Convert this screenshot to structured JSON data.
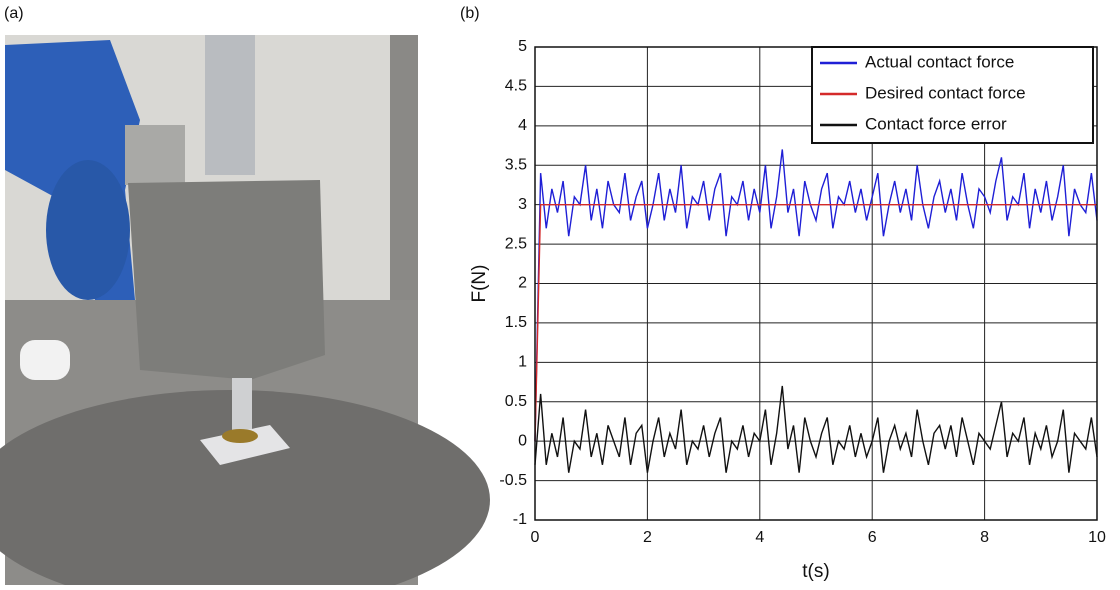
{
  "panel_labels": [
    "(a)",
    "(b)"
  ],
  "chart_data": {
    "type": "line",
    "xlabel": "t(s)",
    "ylabel": "F(N)",
    "x": [
      0,
      0.1,
      0.2,
      0.3,
      0.4,
      0.5,
      0.6,
      0.7,
      0.8,
      0.9,
      1,
      1.1,
      1.2,
      1.3,
      1.4,
      1.5,
      1.6,
      1.7,
      1.8,
      1.9,
      2,
      2.1,
      2.2,
      2.3,
      2.4,
      2.5,
      2.6,
      2.7,
      2.8,
      2.9,
      3,
      3.1,
      3.2,
      3.3,
      3.4,
      3.5,
      3.6,
      3.7,
      3.8,
      3.9,
      4,
      4.1,
      4.2,
      4.3,
      4.4,
      4.5,
      4.6,
      4.7,
      4.8,
      4.9,
      5,
      5.1,
      5.2,
      5.3,
      5.4,
      5.5,
      5.6,
      5.7,
      5.8,
      5.9,
      6,
      6.1,
      6.2,
      6.3,
      6.4,
      6.5,
      6.6,
      6.7,
      6.8,
      6.9,
      7,
      7.1,
      7.2,
      7.3,
      7.4,
      7.5,
      7.6,
      7.7,
      7.8,
      7.9,
      8,
      8.1,
      8.2,
      8.3,
      8.4,
      8.5,
      8.6,
      8.7,
      8.8,
      8.9,
      9,
      9.1,
      9.2,
      9.3,
      9.4,
      9.5,
      9.6,
      9.7,
      9.8,
      9.9,
      10
    ],
    "series": [
      {
        "name": "Actual contact force",
        "color": "#1f1fd6",
        "values": [
          0,
          3.4,
          2.7,
          3.2,
          2.9,
          3.3,
          2.6,
          3.1,
          3.0,
          3.5,
          2.8,
          3.2,
          2.7,
          3.3,
          3.0,
          2.9,
          3.4,
          2.8,
          3.1,
          3.3,
          2.7,
          3.0,
          3.4,
          2.8,
          3.2,
          2.9,
          3.5,
          2.7,
          3.1,
          3.0,
          3.3,
          2.8,
          3.2,
          3.4,
          2.6,
          3.1,
          3.0,
          3.3,
          2.8,
          3.2,
          2.9,
          3.5,
          2.7,
          3.1,
          3.7,
          2.9,
          3.2,
          2.6,
          3.3,
          3.0,
          2.8,
          3.2,
          3.4,
          2.7,
          3.1,
          3.0,
          3.3,
          2.9,
          3.2,
          2.8,
          3.1,
          3.4,
          2.6,
          3.0,
          3.3,
          2.9,
          3.2,
          2.8,
          3.5,
          3.0,
          2.7,
          3.1,
          3.3,
          2.9,
          3.2,
          2.8,
          3.4,
          3.0,
          2.7,
          3.2,
          3.1,
          2.9,
          3.3,
          3.6,
          2.8,
          3.1,
          3.0,
          3.4,
          2.7,
          3.2,
          2.9,
          3.3,
          2.8,
          3.1,
          3.5,
          2.6,
          3.2,
          3.0,
          2.9,
          3.4,
          2.8
        ]
      },
      {
        "name": "Desired contact force",
        "color": "#d42a2a",
        "values": [
          0,
          3,
          3,
          3,
          3,
          3,
          3,
          3,
          3,
          3,
          3,
          3,
          3,
          3,
          3,
          3,
          3,
          3,
          3,
          3,
          3,
          3,
          3,
          3,
          3,
          3,
          3,
          3,
          3,
          3,
          3,
          3,
          3,
          3,
          3,
          3,
          3,
          3,
          3,
          3,
          3,
          3,
          3,
          3,
          3,
          3,
          3,
          3,
          3,
          3,
          3,
          3,
          3,
          3,
          3,
          3,
          3,
          3,
          3,
          3,
          3,
          3,
          3,
          3,
          3,
          3,
          3,
          3,
          3,
          3,
          3,
          3,
          3,
          3,
          3,
          3,
          3,
          3,
          3,
          3,
          3,
          3,
          3,
          3,
          3,
          3,
          3,
          3,
          3,
          3,
          3,
          3,
          3,
          3,
          3,
          3,
          3,
          3,
          3,
          3,
          3
        ]
      },
      {
        "name": "Contact force error",
        "color": "#111111",
        "values": [
          -0.3,
          0.6,
          -0.3,
          0.1,
          -0.2,
          0.3,
          -0.4,
          0.0,
          -0.1,
          0.4,
          -0.2,
          0.1,
          -0.3,
          0.2,
          0.0,
          -0.2,
          0.3,
          -0.3,
          0.1,
          0.2,
          -0.4,
          0.0,
          0.3,
          -0.2,
          0.1,
          -0.1,
          0.4,
          -0.3,
          0.0,
          -0.1,
          0.2,
          -0.2,
          0.1,
          0.3,
          -0.4,
          0.0,
          -0.1,
          0.2,
          -0.2,
          0.1,
          0.0,
          0.4,
          -0.3,
          0.1,
          0.7,
          -0.1,
          0.2,
          -0.4,
          0.3,
          0.0,
          -0.2,
          0.1,
          0.3,
          -0.3,
          0.0,
          -0.1,
          0.2,
          -0.2,
          0.1,
          -0.2,
          0.0,
          0.3,
          -0.4,
          0.0,
          0.2,
          -0.1,
          0.1,
          -0.2,
          0.4,
          0.0,
          -0.3,
          0.1,
          0.2,
          -0.1,
          0.2,
          -0.2,
          0.3,
          0.0,
          -0.3,
          0.1,
          0.0,
          -0.1,
          0.2,
          0.5,
          -0.2,
          0.1,
          0.0,
          0.3,
          -0.3,
          0.1,
          -0.1,
          0.2,
          -0.2,
          0.0,
          0.4,
          -0.4,
          0.1,
          0.0,
          -0.1,
          0.3,
          -0.2
        ]
      }
    ],
    "xlim": [
      0,
      10
    ],
    "xticks": [
      0,
      2,
      4,
      6,
      8,
      10
    ],
    "ylim": [
      -1,
      5
    ],
    "yticks": [
      -1,
      -0.5,
      0,
      0.5,
      1,
      1.5,
      2,
      2.5,
      3,
      3.5,
      4,
      4.5,
      5
    ],
    "grid": true,
    "legend": "upper right"
  }
}
